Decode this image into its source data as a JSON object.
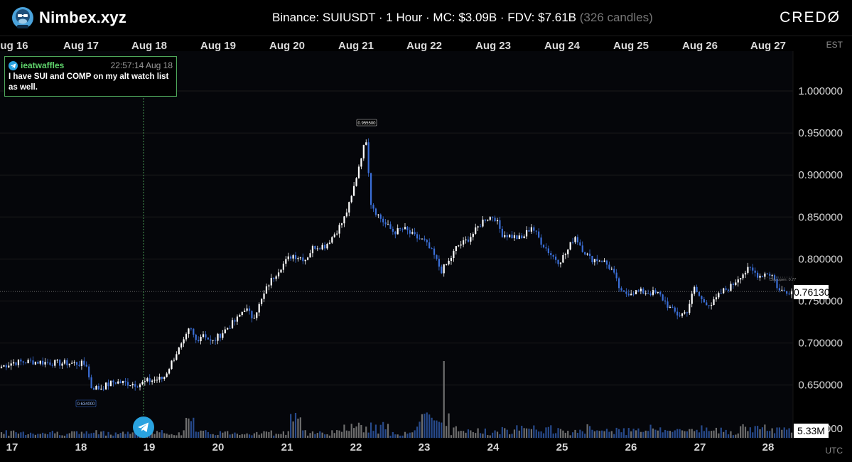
{
  "app": {
    "name": "Nimbex.xyz",
    "brand_right": "CREDØ"
  },
  "header": {
    "title": "Binance: SUIUSDT · 1 Hour · MC: $3.09B · FDV: $7.61B",
    "candles_note": "(326 candles)"
  },
  "timezones": {
    "top": "EST",
    "bottom": "UTC"
  },
  "message": {
    "user": "ieatwaffles",
    "time": "22:57:14 Aug 18",
    "text": "I have SUI and COMP on my alt watch list as well."
  },
  "colors": {
    "up": "#ffffff",
    "down": "#3b6fd8",
    "vol_up": "#6e6e6e",
    "vol_down": "#274a8c",
    "grid": "#1a1a1a",
    "marker_line": "#4ea65a",
    "telegram": "#2aa3e0"
  },
  "icons": {
    "logo": "gorilla-mascot-icon",
    "telegram": "telegram-icon"
  },
  "chart_data": {
    "type": "candlestick",
    "symbol": "SUIUSDT",
    "exchange": "Binance",
    "interval": "1 Hour",
    "candle_count": 326,
    "top_axis_labels": [
      "ug 16",
      "Aug 17",
      "Aug 18",
      "Aug 19",
      "Aug 20",
      "Aug 21",
      "Aug 22",
      "Aug 23",
      "Aug 24",
      "Aug 25",
      "Aug 26",
      "Aug 27"
    ],
    "bottom_axis_labels": [
      "17",
      "18",
      "19",
      "20",
      "21",
      "22",
      "23",
      "24",
      "25",
      "26",
      "27",
      "28"
    ],
    "y_ticks": [
      "1.000000",
      "0.950000",
      "0.900000",
      "0.850000",
      "0.800000",
      "0.750000",
      "0.700000",
      "0.650000"
    ],
    "ylim": [
      0.62,
      1.04
    ],
    "current_price": "0.761300",
    "current_volume": "5.33M",
    "annotations": {
      "high_label": "0.955500",
      "low_label": "0.634000",
      "day_open_label": "Day open: 0.77"
    },
    "price_path": [
      [
        0,
        0.672
      ],
      [
        12,
        0.677
      ],
      [
        30,
        0.678
      ],
      [
        60,
        0.676
      ],
      [
        75,
        0.676
      ],
      [
        88,
        0.674
      ],
      [
        90,
        0.648
      ],
      [
        100,
        0.646
      ],
      [
        115,
        0.654
      ],
      [
        130,
        0.652
      ],
      [
        140,
        0.651
      ],
      [
        150,
        0.655
      ],
      [
        165,
        0.658
      ],
      [
        170,
        0.669
      ],
      [
        178,
        0.688
      ],
      [
        186,
        0.701
      ],
      [
        192,
        0.718
      ],
      [
        198,
        0.703
      ],
      [
        206,
        0.712
      ],
      [
        214,
        0.7
      ],
      [
        222,
        0.709
      ],
      [
        232,
        0.72
      ],
      [
        240,
        0.728
      ],
      [
        248,
        0.742
      ],
      [
        256,
        0.73
      ],
      [
        264,
        0.748
      ],
      [
        272,
        0.77
      ],
      [
        284,
        0.79
      ],
      [
        296,
        0.805
      ],
      [
        310,
        0.8
      ],
      [
        318,
        0.815
      ],
      [
        330,
        0.816
      ],
      [
        340,
        0.831
      ],
      [
        348,
        0.845
      ],
      [
        356,
        0.87
      ],
      [
        362,
        0.9
      ],
      [
        366,
        0.921
      ],
      [
        372,
        0.944
      ],
      [
        376,
        0.868
      ],
      [
        382,
        0.855
      ],
      [
        392,
        0.84
      ],
      [
        400,
        0.832
      ],
      [
        410,
        0.836
      ],
      [
        420,
        0.827
      ],
      [
        430,
        0.822
      ],
      [
        440,
        0.806
      ],
      [
        448,
        0.786
      ],
      [
        456,
        0.797
      ],
      [
        464,
        0.815
      ],
      [
        472,
        0.82
      ],
      [
        482,
        0.832
      ],
      [
        492,
        0.848
      ],
      [
        502,
        0.851
      ],
      [
        510,
        0.83
      ],
      [
        520,
        0.827
      ],
      [
        530,
        0.824
      ],
      [
        540,
        0.839
      ],
      [
        550,
        0.82
      ],
      [
        560,
        0.805
      ],
      [
        568,
        0.797
      ],
      [
        576,
        0.808
      ],
      [
        584,
        0.828
      ],
      [
        592,
        0.812
      ],
      [
        600,
        0.8
      ],
      [
        612,
        0.799
      ],
      [
        622,
        0.787
      ],
      [
        632,
        0.758
      ],
      [
        642,
        0.761
      ],
      [
        652,
        0.761
      ],
      [
        662,
        0.76
      ],
      [
        670,
        0.758
      ],
      [
        682,
        0.74
      ],
      [
        690,
        0.733
      ],
      [
        698,
        0.737
      ],
      [
        706,
        0.765
      ],
      [
        714,
        0.75
      ],
      [
        724,
        0.746
      ],
      [
        734,
        0.761
      ],
      [
        744,
        0.768
      ],
      [
        752,
        0.78
      ],
      [
        762,
        0.788
      ],
      [
        772,
        0.78
      ],
      [
        780,
        0.784
      ],
      [
        786,
        0.78
      ],
      [
        792,
        0.762
      ],
      [
        800,
        0.762
      ],
      [
        805,
        0.762
      ]
    ],
    "volume_spikes": [
      [
        0.06,
        1
      ],
      [
        0.12,
        2
      ],
      [
        0.25,
        2
      ],
      [
        0.33,
        3
      ],
      [
        0.44,
        3
      ],
      [
        0.53,
        4
      ],
      [
        0.8,
        8
      ],
      [
        0.95,
        3
      ],
      [
        1.6,
        2
      ],
      [
        1.2,
        3
      ],
      [
        5.0,
        4
      ],
      [
        2.5,
        5
      ],
      [
        2.2,
        3
      ],
      [
        1.6,
        3
      ]
    ]
  }
}
